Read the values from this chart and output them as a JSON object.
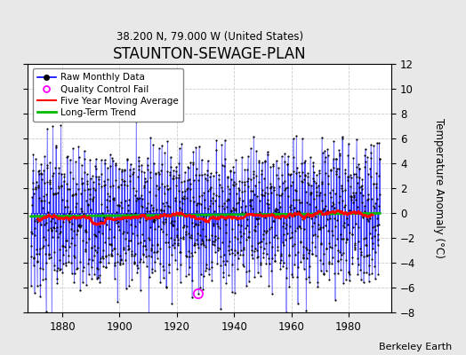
{
  "title": "STAUNTON-SEWAGE-PLAN",
  "subtitle": "38.200 N, 79.000 W (United States)",
  "ylabel": "Temperature Anomaly (°C)",
  "xlabel_credit": "Berkeley Earth",
  "xlim": [
    1868,
    1995
  ],
  "ylim": [
    -8,
    12
  ],
  "yticks": [
    -8,
    -6,
    -4,
    -2,
    0,
    2,
    4,
    6,
    8,
    10,
    12
  ],
  "xticks": [
    1880,
    1900,
    1920,
    1940,
    1960,
    1980
  ],
  "year_start": 1869,
  "year_end": 1991,
  "raw_color": "#0000FF",
  "ma_color": "#FF0000",
  "trend_color": "#00BB00",
  "qc_color": "#FF00FF",
  "plot_bg": "#FFFFFF",
  "fig_bg": "#E8E8E8",
  "grid_color": "#CCCCCC",
  "seed": 17
}
